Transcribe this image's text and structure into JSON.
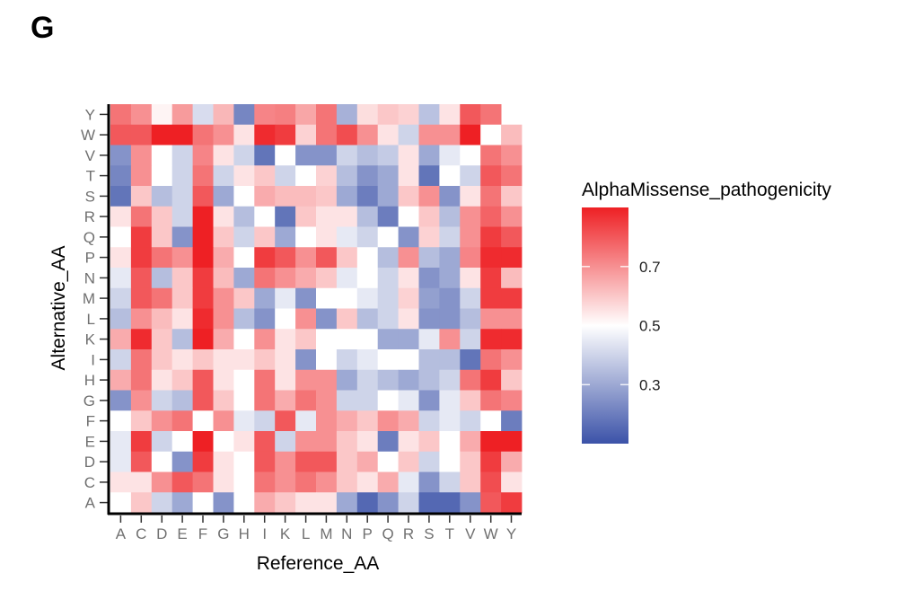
{
  "panel_letter": "G",
  "chart_data": {
    "type": "heatmap",
    "x_categories": [
      "A",
      "C",
      "D",
      "E",
      "F",
      "G",
      "H",
      "I",
      "K",
      "L",
      "M",
      "N",
      "P",
      "Q",
      "R",
      "S",
      "T",
      "V",
      "W",
      "Y"
    ],
    "y_categories": [
      "A",
      "C",
      "D",
      "E",
      "F",
      "G",
      "H",
      "I",
      "K",
      "L",
      "M",
      "N",
      "P",
      "Q",
      "R",
      "S",
      "T",
      "V",
      "W",
      "Y"
    ],
    "xlabel": "Reference_AA",
    "ylabel": "Alternative_AA",
    "legend": {
      "title": "AlphaMissense_pathogenicity",
      "ticks": [
        "0.3",
        "0.5",
        "0.7"
      ],
      "tick_values": [
        0.3,
        0.5,
        0.7
      ],
      "range": [
        0.1,
        0.9
      ],
      "placement": "right"
    },
    "colors": {
      "low": "#3B52A8",
      "mid": "#FFFFFF",
      "high": "#EE2024"
    },
    "values": [
      [
        0.75,
        0.7,
        0.52,
        0.68,
        0.42,
        0.63,
        0.22,
        0.72,
        0.73,
        0.66,
        0.75,
        0.32,
        0.56,
        0.6,
        0.58,
        0.36,
        0.55,
        0.8,
        0.75,
        null
      ],
      [
        0.8,
        0.8,
        0.9,
        0.9,
        0.75,
        0.7,
        0.55,
        0.88,
        0.85,
        0.58,
        0.75,
        0.82,
        0.7,
        0.55,
        0.4,
        0.7,
        0.7,
        0.9,
        0.5,
        0.62
      ],
      [
        0.25,
        0.7,
        0.5,
        0.4,
        0.72,
        0.55,
        0.4,
        0.18,
        0.5,
        0.25,
        0.25,
        0.4,
        0.35,
        0.38,
        0.55,
        0.3,
        0.45,
        0.5,
        0.75,
        0.7
      ],
      [
        0.22,
        0.7,
        0.5,
        0.4,
        0.75,
        0.4,
        0.55,
        0.6,
        0.4,
        0.5,
        0.58,
        0.35,
        0.25,
        0.3,
        0.55,
        0.18,
        0.5,
        0.4,
        0.8,
        0.75
      ],
      [
        0.18,
        0.6,
        0.35,
        0.4,
        0.8,
        0.3,
        0.5,
        0.65,
        0.62,
        0.62,
        0.6,
        0.3,
        0.2,
        0.3,
        0.6,
        0.7,
        0.25,
        0.55,
        0.75,
        0.6
      ],
      [
        0.55,
        0.75,
        0.6,
        0.4,
        0.9,
        0.55,
        0.35,
        0.5,
        0.18,
        0.6,
        0.55,
        0.55,
        0.35,
        0.2,
        0.5,
        0.6,
        0.35,
        0.7,
        0.78,
        0.7
      ],
      [
        0.5,
        0.85,
        0.6,
        0.25,
        0.9,
        0.6,
        0.4,
        0.6,
        0.3,
        0.5,
        0.55,
        0.45,
        0.4,
        0.5,
        0.25,
        0.58,
        0.4,
        0.7,
        0.85,
        0.8
      ],
      [
        0.55,
        0.85,
        0.75,
        0.7,
        0.9,
        0.65,
        0.5,
        0.85,
        0.8,
        0.7,
        0.8,
        0.6,
        0.5,
        0.35,
        0.7,
        0.35,
        0.3,
        0.72,
        0.88,
        0.88
      ],
      [
        0.45,
        0.8,
        0.35,
        0.6,
        0.85,
        0.62,
        0.3,
        0.75,
        0.7,
        0.65,
        0.6,
        0.45,
        0.5,
        0.4,
        0.55,
        0.25,
        0.3,
        0.55,
        0.85,
        0.62
      ],
      [
        0.4,
        0.8,
        0.75,
        0.6,
        0.85,
        0.7,
        0.6,
        0.3,
        0.45,
        0.25,
        0.5,
        0.5,
        0.45,
        0.4,
        0.58,
        0.28,
        0.25,
        0.4,
        0.85,
        0.85
      ],
      [
        0.35,
        0.7,
        0.62,
        0.55,
        0.88,
        0.7,
        0.35,
        0.25,
        0.5,
        0.7,
        0.25,
        0.6,
        0.35,
        0.4,
        0.55,
        0.25,
        0.25,
        0.35,
        0.7,
        0.7
      ],
      [
        0.65,
        0.88,
        0.6,
        0.35,
        0.9,
        0.65,
        0.5,
        0.7,
        0.55,
        0.6,
        0.5,
        0.5,
        0.5,
        0.3,
        0.3,
        0.45,
        0.7,
        0.4,
        0.88,
        0.88
      ],
      [
        0.4,
        0.75,
        0.6,
        0.55,
        0.6,
        0.55,
        0.55,
        0.6,
        0.55,
        0.25,
        0.5,
        0.4,
        0.45,
        0.5,
        0.5,
        0.35,
        0.35,
        0.18,
        0.75,
        0.7
      ],
      [
        0.65,
        0.75,
        0.55,
        0.6,
        0.8,
        0.55,
        0.5,
        0.75,
        0.55,
        0.7,
        0.7,
        0.3,
        0.4,
        0.35,
        0.3,
        0.35,
        0.4,
        0.75,
        0.85,
        0.6
      ],
      [
        0.25,
        0.7,
        0.4,
        0.35,
        0.8,
        0.6,
        0.5,
        0.75,
        0.65,
        0.75,
        0.7,
        0.4,
        0.4,
        0.5,
        0.45,
        0.25,
        0.45,
        0.6,
        0.75,
        0.72
      ],
      [
        0.5,
        0.6,
        0.7,
        0.75,
        0.5,
        0.7,
        0.45,
        0.4,
        0.8,
        0.45,
        0.7,
        0.65,
        0.6,
        0.7,
        0.65,
        0.4,
        0.45,
        0.4,
        0.5,
        0.2
      ],
      [
        0.45,
        0.85,
        0.4,
        0.5,
        0.9,
        0.5,
        0.55,
        0.8,
        0.4,
        0.7,
        0.7,
        0.6,
        0.55,
        0.2,
        0.55,
        0.6,
        0.5,
        0.65,
        0.9,
        0.9
      ],
      [
        0.45,
        0.8,
        0.5,
        0.25,
        0.85,
        0.55,
        0.5,
        0.8,
        0.7,
        0.8,
        0.8,
        0.6,
        0.65,
        0.5,
        0.6,
        0.4,
        0.5,
        0.6,
        0.85,
        0.65
      ],
      [
        0.55,
        0.55,
        0.7,
        0.8,
        0.75,
        0.55,
        0.5,
        0.75,
        0.7,
        0.75,
        0.7,
        0.6,
        0.55,
        0.65,
        0.45,
        0.25,
        0.4,
        0.6,
        0.82,
        0.55
      ],
      [
        0.5,
        0.6,
        0.4,
        0.3,
        0.5,
        0.25,
        0.5,
        0.65,
        0.6,
        0.55,
        0.55,
        0.3,
        0.15,
        0.25,
        0.4,
        0.15,
        0.15,
        0.25,
        0.8,
        0.85
      ]
    ]
  }
}
